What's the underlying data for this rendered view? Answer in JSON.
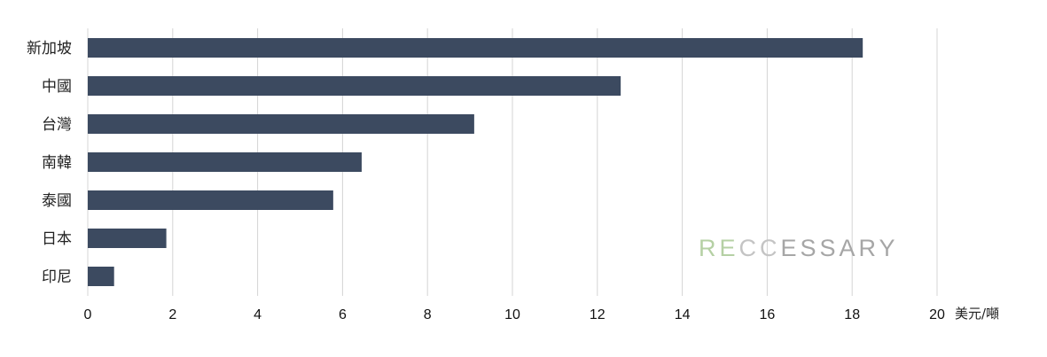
{
  "chart_data": {
    "type": "bar",
    "orientation": "horizontal",
    "categories": [
      "新加坡",
      "中國",
      "台灣",
      "南韓",
      "泰國",
      "日本",
      "印尼"
    ],
    "values": [
      18.25,
      12.55,
      9.1,
      6.45,
      5.78,
      1.85,
      0.62
    ],
    "xlim": [
      0,
      20
    ],
    "xticks": [
      "0",
      "2",
      "4",
      "6",
      "8",
      "10",
      "12",
      "14",
      "16",
      "18",
      "20"
    ],
    "unit_label": "美元/噸",
    "grid": "vertical",
    "bar_color": "#3c4a60",
    "grid_color": "#d4d4d4"
  },
  "watermark": {
    "parts": [
      {
        "text": "RE",
        "color": "#b5d0a4"
      },
      {
        "text": "CC",
        "color": "#c4c4c4"
      },
      {
        "text": "ESSARY",
        "color": "#a6a6a6"
      }
    ]
  }
}
